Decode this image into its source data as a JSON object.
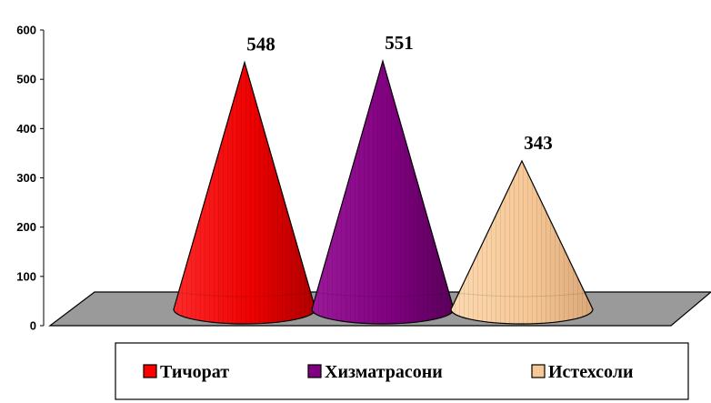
{
  "chart_data": {
    "type": "bar",
    "bar_shape": "cone-3d",
    "categories": [
      "Тичорат",
      "Хизматрасони",
      "Истехсоли"
    ],
    "values": [
      548,
      551,
      343
    ],
    "data_labels": [
      "548",
      "551",
      "343"
    ],
    "colors": [
      "#ff0000",
      "#800080",
      "#f7c796"
    ],
    "title": "",
    "xlabel": "",
    "ylabel": "",
    "ylim": [
      0,
      600
    ],
    "yticks": [
      "0",
      "100",
      "200",
      "300",
      "400",
      "500",
      "600"
    ],
    "grid": false,
    "floor_color": "#9a9a9a",
    "legend": {
      "placement": "bottom",
      "entries": [
        "Тичорат",
        "Хизматрасони",
        "Истехсоли"
      ]
    }
  }
}
